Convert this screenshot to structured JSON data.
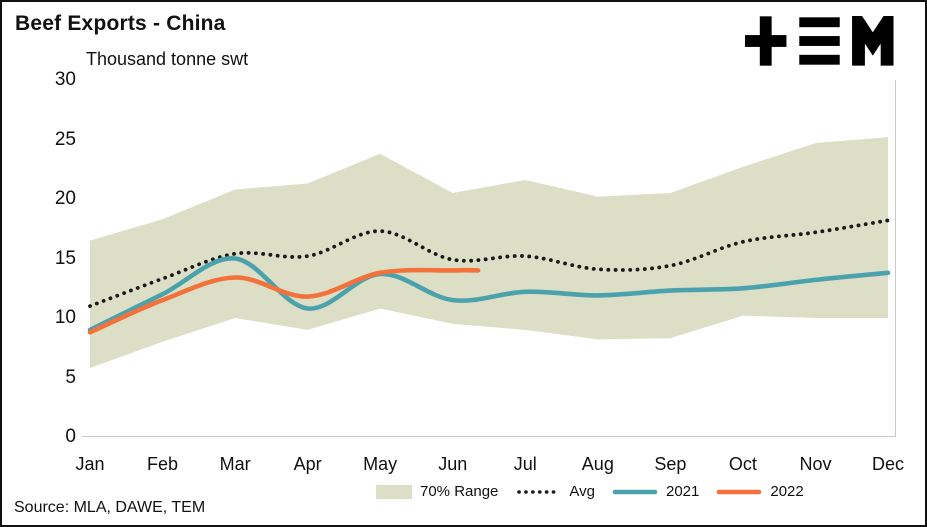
{
  "header": {
    "title": "Beef Exports - China",
    "subtitle": "Thousand tonne swt",
    "logo": "tem-logo"
  },
  "footer": {
    "source": "Source: MLA, DAWE, TEM"
  },
  "chart_data": {
    "type": "line",
    "title": "Beef Exports - China",
    "ylabel": "Thousand tonne swt",
    "xlabel": "",
    "ylim": [
      0,
      30
    ],
    "yticks": [
      0,
      5,
      10,
      15,
      20,
      25,
      30
    ],
    "categories": [
      "Jan",
      "Feb",
      "Mar",
      "Apr",
      "May",
      "Jun",
      "Jul",
      "Aug",
      "Sep",
      "Oct",
      "Nov",
      "Dec"
    ],
    "grid": false,
    "legend_position": "bottom",
    "band_color": "#dcdfc6",
    "band": {
      "name": "70% Range",
      "upper": [
        16.5,
        18.3,
        20.8,
        21.3,
        23.8,
        20.5,
        21.6,
        20.2,
        20.5,
        22.7,
        24.7,
        25.2
      ],
      "lower": [
        5.8,
        8.0,
        10.0,
        9.0,
        10.8,
        9.5,
        9.0,
        8.2,
        8.3,
        10.2,
        10.0,
        10.0
      ]
    },
    "series": [
      {
        "name": "Avg",
        "style": "dotted",
        "color": "#1a1a1a",
        "values": [
          11.0,
          13.3,
          15.4,
          15.2,
          17.3,
          14.9,
          15.2,
          14.1,
          14.4,
          16.4,
          17.2,
          18.2
        ]
      },
      {
        "name": "2021",
        "style": "solid",
        "color": "#4ba2ad",
        "values": [
          9.0,
          12.0,
          15.0,
          10.8,
          13.7,
          11.5,
          12.2,
          11.9,
          12.3,
          12.5,
          13.2,
          13.8
        ]
      },
      {
        "name": "2022",
        "style": "solid",
        "color": "#f3713b",
        "values": [
          8.8,
          11.5,
          13.4,
          11.8,
          13.8,
          14.0
        ],
        "extend_to_x": 5.35
      }
    ],
    "legend": [
      {
        "label": "70% Range",
        "type": "band"
      },
      {
        "label": "Avg",
        "type": "dotted"
      },
      {
        "label": "2021",
        "type": "solid-teal"
      },
      {
        "label": "2022",
        "type": "solid-orange"
      }
    ]
  }
}
